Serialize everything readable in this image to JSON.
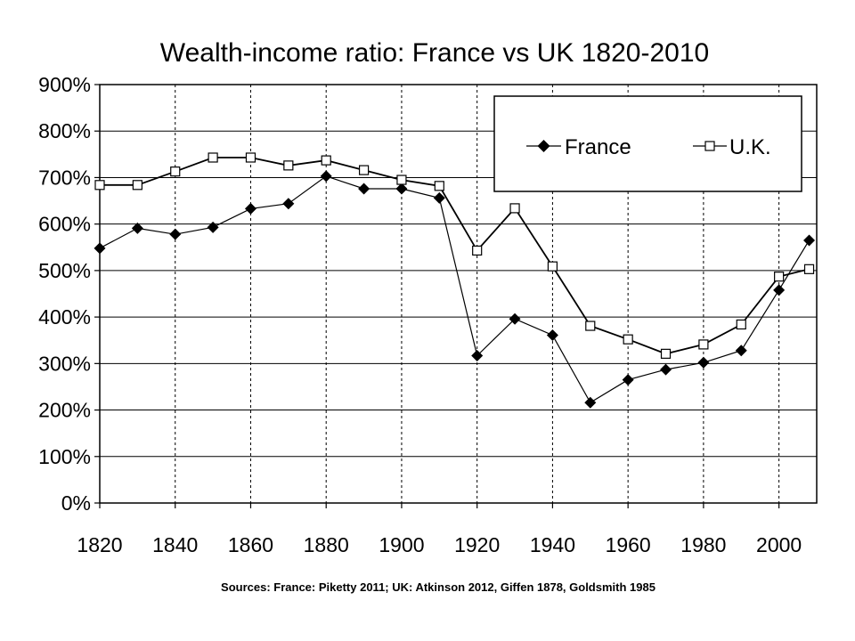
{
  "chart_data": {
    "type": "line",
    "title": "Wealth-income ratio: France vs UK 1820-2010",
    "source": "Sources: France: Piketty 2011; UK: Atkinson 2012, Giffen 1878, Goldsmith 1985",
    "xlim": [
      1820,
      2010
    ],
    "ylim": [
      0,
      900
    ],
    "x_ticks": [
      1820,
      1840,
      1860,
      1880,
      1900,
      1920,
      1940,
      1960,
      1980,
      2000
    ],
    "x_tick_labels": [
      "1820",
      "1840",
      "1860",
      "1880",
      "1900",
      "1920",
      "1940",
      "1960",
      "1980",
      "2000"
    ],
    "y_ticks": [
      0,
      100,
      200,
      300,
      400,
      500,
      600,
      700,
      800,
      900
    ],
    "y_tick_labels": [
      "0%",
      "100%",
      "200%",
      "300%",
      "400%",
      "500%",
      "600%",
      "700%",
      "800%",
      "900%"
    ],
    "grid": "horizontal solid, vertical dashed",
    "legend_position": "top-right",
    "series": [
      {
        "name": "France",
        "marker": "diamond",
        "color": "#000000",
        "x": [
          1820,
          1830,
          1840,
          1850,
          1860,
          1870,
          1880,
          1890,
          1900,
          1910,
          1920,
          1930,
          1940,
          1950,
          1960,
          1970,
          1980,
          1990,
          2000,
          2008
        ],
        "y": [
          548,
          591,
          578,
          593,
          633,
          644,
          703,
          676,
          676,
          656,
          317,
          396,
          361,
          216,
          265,
          287,
          302,
          328,
          458,
          565
        ]
      },
      {
        "name": "U.K.",
        "marker": "square-open",
        "color": "#000000",
        "x": [
          1820,
          1830,
          1840,
          1850,
          1860,
          1870,
          1880,
          1890,
          1900,
          1910,
          1920,
          1930,
          1940,
          1950,
          1960,
          1970,
          1980,
          1990,
          2000,
          2008
        ],
        "y": [
          684,
          684,
          713,
          743,
          743,
          726,
          737,
          716,
          695,
          682,
          543,
          634,
          509,
          381,
          352,
          321,
          341,
          384,
          487,
          503
        ]
      }
    ]
  }
}
